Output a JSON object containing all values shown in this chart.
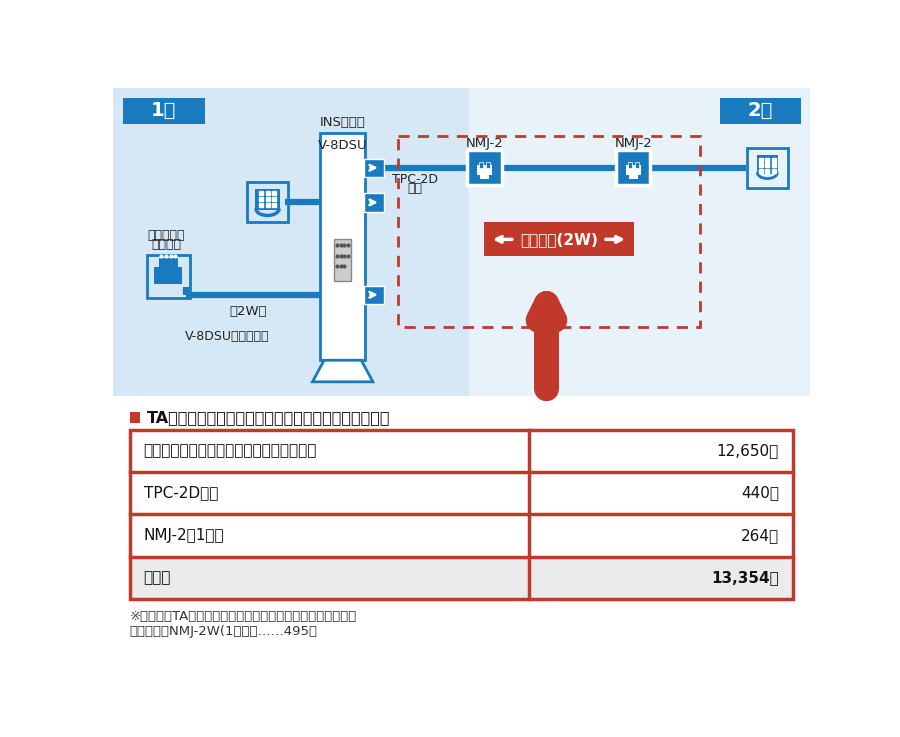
{
  "bg_color_left": "#d6e8f5",
  "bg_color_right": "#e8f2fb",
  "floor1_label": "1階",
  "floor2_label": "2階",
  "floor_btn_color": "#1a7abf",
  "floor_text_color": "#ffffff",
  "ins_label1": "INSメイト",
  "ins_label2": "V-8DSU",
  "tpc_label1": "TPC-2D",
  "tpc_label2": "ヒモ",
  "nmj1_label": "NMJ-2",
  "nmj2_label": "NMJ-2",
  "modular_label1": "モジュラー",
  "modular_label2": "ジャック",
  "v8dsu_himo_label": "V-8DSU添付のヒモ",
  "nw_label": "（2W）",
  "kiki_label": "機器配線(2W)",
  "line_color": "#1a7abf",
  "red_color": "#c0392b",
  "dashed_rect_color": "#c0392b",
  "kiki_box_color": "#c0392b",
  "table_title_text": "TAのアナログポートから配線を延長する場合の工事費",
  "table_border_color": "#c0392b",
  "rows": [
    {
      "label": "機器配線工事費（屋内配線工事費を適用）",
      "value": "12,650円",
      "bold": false,
      "bg": "#ffffff"
    },
    {
      "label": "TPC-2Dヒモ",
      "value": "440円",
      "bold": false,
      "bg": "#ffffff"
    },
    {
      "label": "NMJ-2（1個）",
      "value": "264円",
      "bold": false,
      "bg": "#ffffff"
    },
    {
      "label": "合　計",
      "value": "13,354円",
      "bold": true,
      "bg": "#ebebeb"
    }
  ],
  "note1": "※この他にTAの機器工事費や基本工事費が必要となります。",
  "note2": "　（参考）NMJ-2W(1個）　……495円",
  "white_color": "#ffffff"
}
